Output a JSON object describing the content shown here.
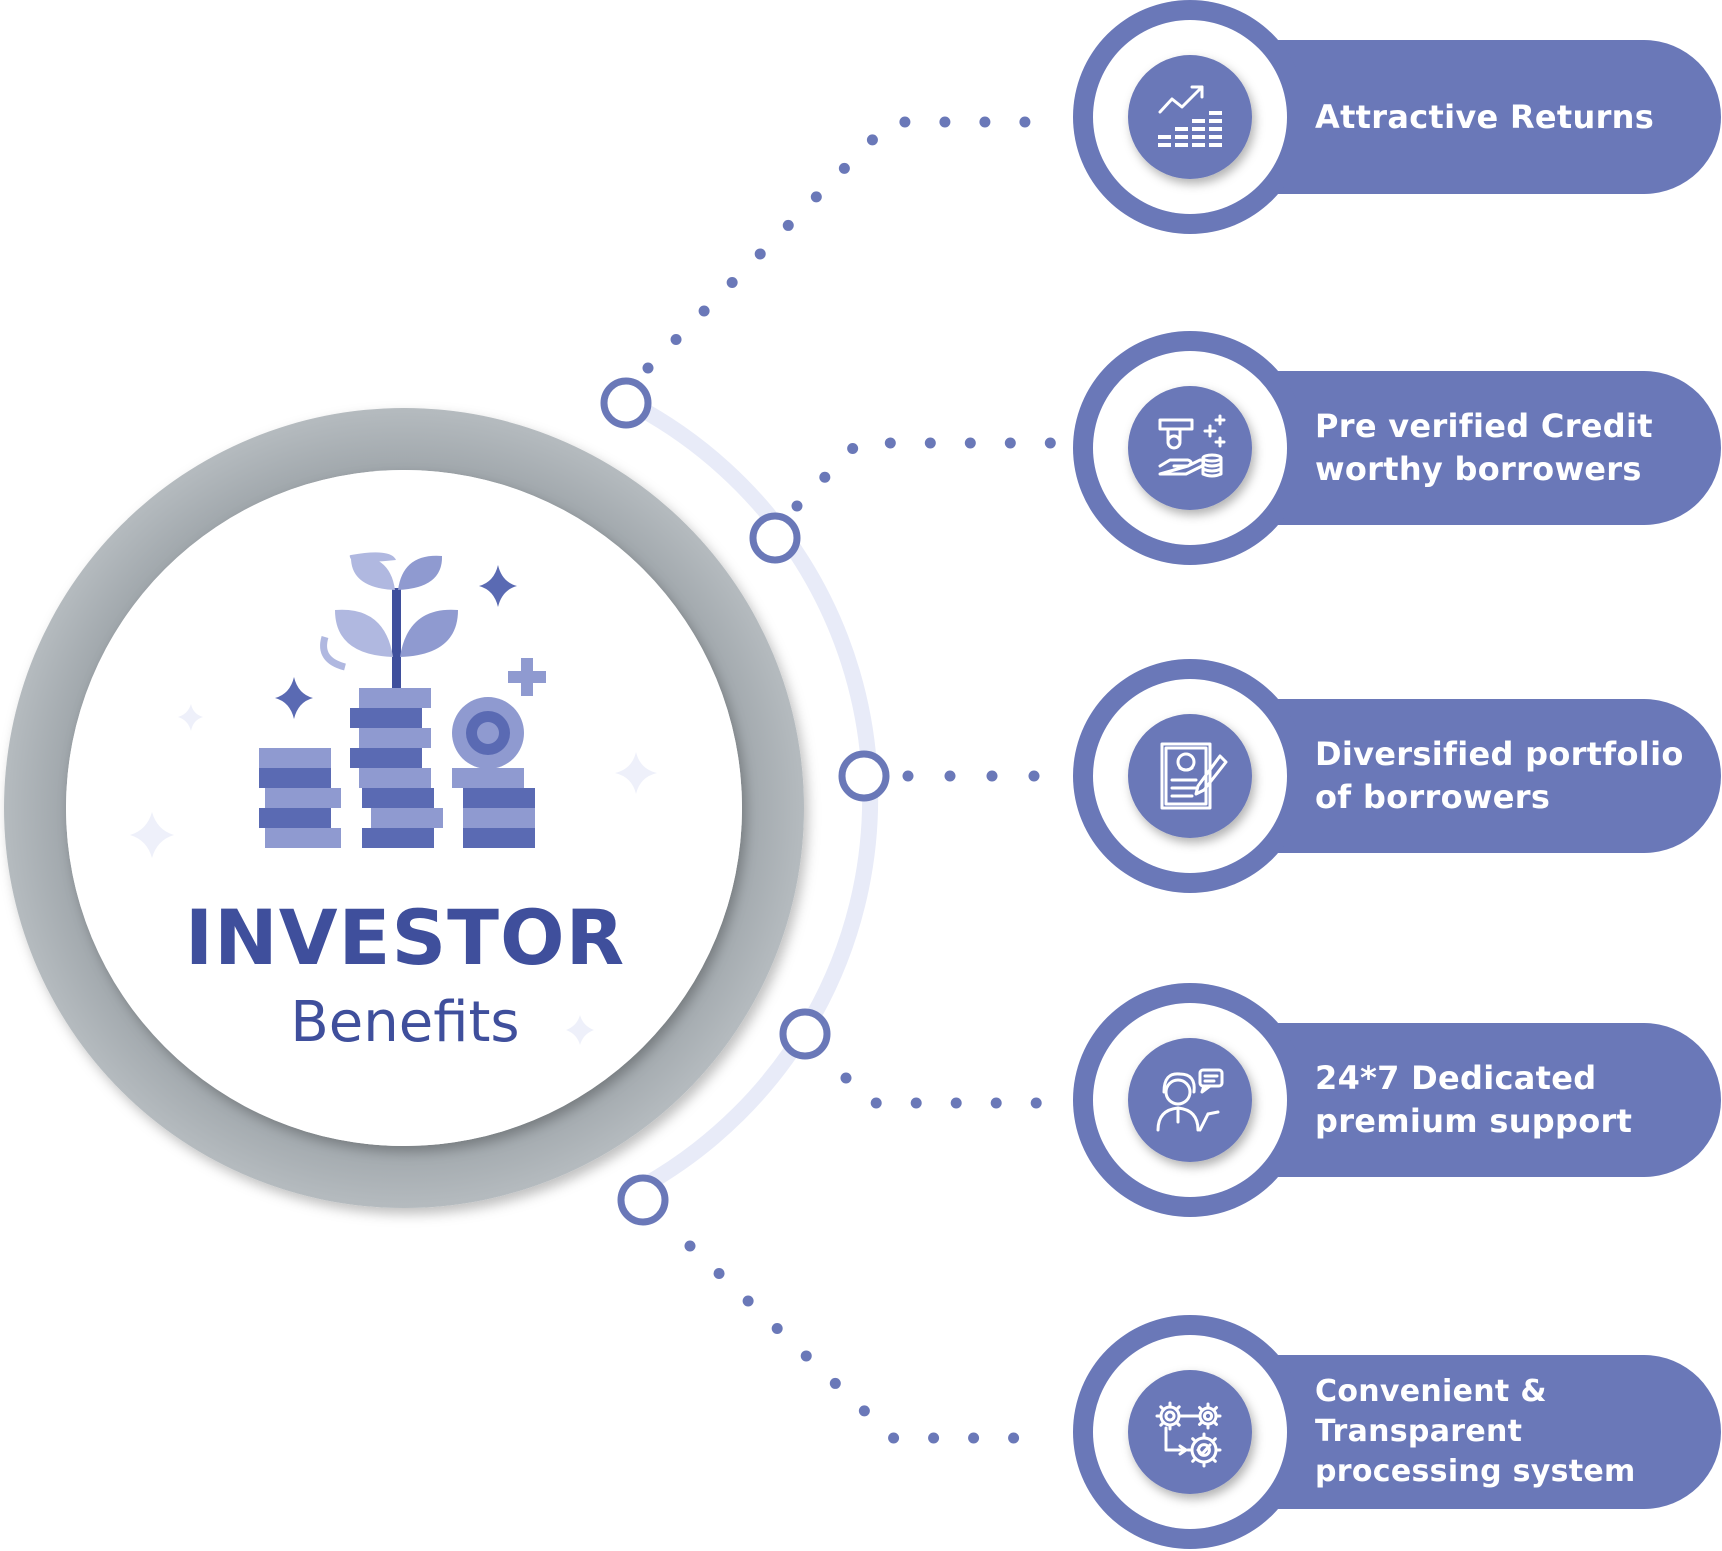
{
  "center": {
    "title": "INVESTOR",
    "subtitle": "Benefits"
  },
  "benefits": [
    {
      "lines": [
        "Attractive Returns"
      ],
      "icon": "trending-up-chart-icon"
    },
    {
      "lines": [
        "Pre verified Credit",
        "worthy borrowers"
      ],
      "icon": "money-hand-coins-icon"
    },
    {
      "lines": [
        "Diversified portfolio",
        "of borrowers"
      ],
      "icon": "profile-document-pen-icon"
    },
    {
      "lines": [
        "24*7 Dedicated",
        "premium support"
      ],
      "icon": "support-agent-chat-icon"
    },
    {
      "lines": [
        "Convenient & Transparent",
        "processing system"
      ],
      "icon": "gears-process-check-icon"
    }
  ],
  "colors": {
    "accent": "#6a78b8",
    "dark_accent": "#3f4f9c",
    "light_accent": "#8f9ad0",
    "pale_accent": "#b0b8e0",
    "arc": "#e8ebf8",
    "ring_gray": "#a5acb0"
  }
}
